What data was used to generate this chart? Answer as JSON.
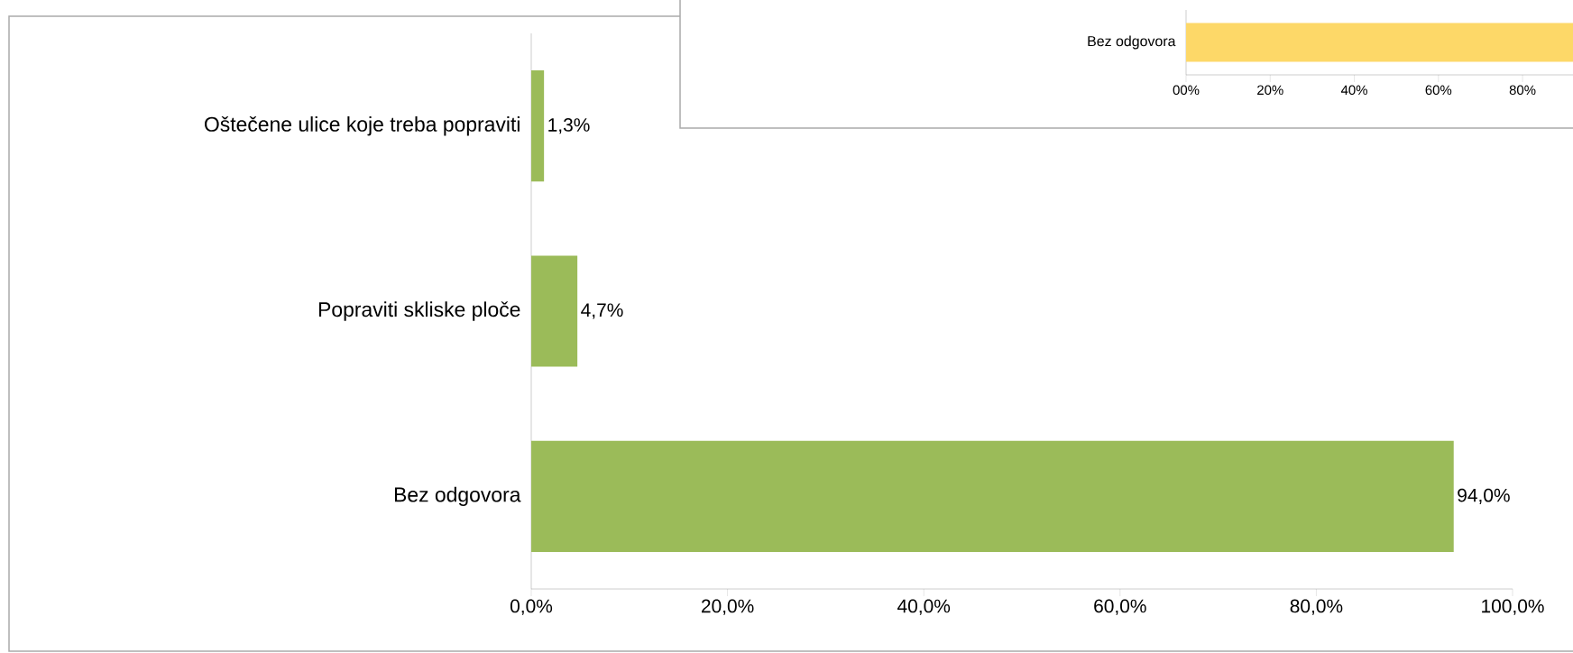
{
  "chart_data": [
    {
      "type": "bar",
      "orientation": "horizontal",
      "categories": [
        "Oštečene ulice koje treba popraviti",
        "Popraviti skliske ploče",
        "Bez odgovora"
      ],
      "values": [
        1.3,
        4.7,
        94.0
      ],
      "value_labels": [
        "1,3%",
        "4,7%",
        "94,0%"
      ],
      "color": "#9bbb59",
      "xlim": [
        0,
        100
      ],
      "xticks": [
        {
          "value": 0,
          "label": "0,0%"
        },
        {
          "value": 20,
          "label": "20,0%"
        },
        {
          "value": 40,
          "label": "40,0%"
        },
        {
          "value": 60,
          "label": "60,0%"
        },
        {
          "value": 80,
          "label": "80,0%"
        },
        {
          "value": 100,
          "label": "100,0%"
        }
      ]
    },
    {
      "type": "bar",
      "orientation": "horizontal",
      "categories": [
        "Bez odgovora"
      ],
      "values": [
        92
      ],
      "color": "#fdd868",
      "xlim": [
        0,
        92
      ],
      "xticks": [
        {
          "value": 0,
          "label": "00%"
        },
        {
          "value": 20,
          "label": "20%"
        },
        {
          "value": 40,
          "label": "40%"
        },
        {
          "value": 60,
          "label": "60%"
        },
        {
          "value": 80,
          "label": "80%"
        }
      ]
    }
  ]
}
